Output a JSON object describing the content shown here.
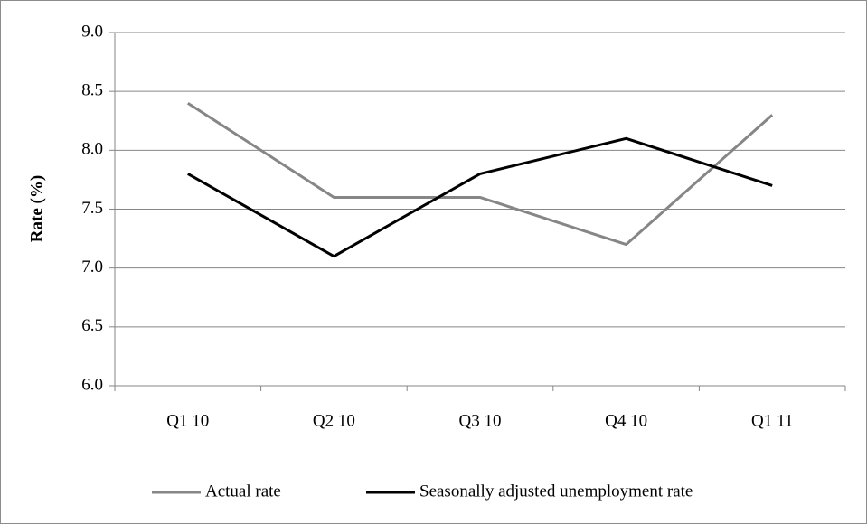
{
  "chart_data": {
    "type": "line",
    "y_label": "Rate (%)",
    "categories": [
      "Q1 10",
      "Q2 10",
      "Q3 10",
      "Q4 10",
      "Q1 11"
    ],
    "series": [
      {
        "name": "Actual rate",
        "color": "#868686",
        "values": [
          8.4,
          7.6,
          7.6,
          7.2,
          8.3
        ]
      },
      {
        "name": "Seasonally adjusted unemployment rate",
        "color": "#000000",
        "values": [
          7.8,
          7.1,
          7.8,
          8.1,
          7.7
        ]
      }
    ],
    "ylim": [
      6,
      9
    ],
    "yticks": [
      {
        "value": 6,
        "label": "6.0"
      },
      6.5,
      {
        "value": 7,
        "label": "7.0"
      },
      7.5,
      {
        "value": 8,
        "label": "8.0"
      },
      8.5,
      {
        "value": 9,
        "label": "9.0"
      }
    ],
    "grid": true,
    "legend": "bottom"
  }
}
